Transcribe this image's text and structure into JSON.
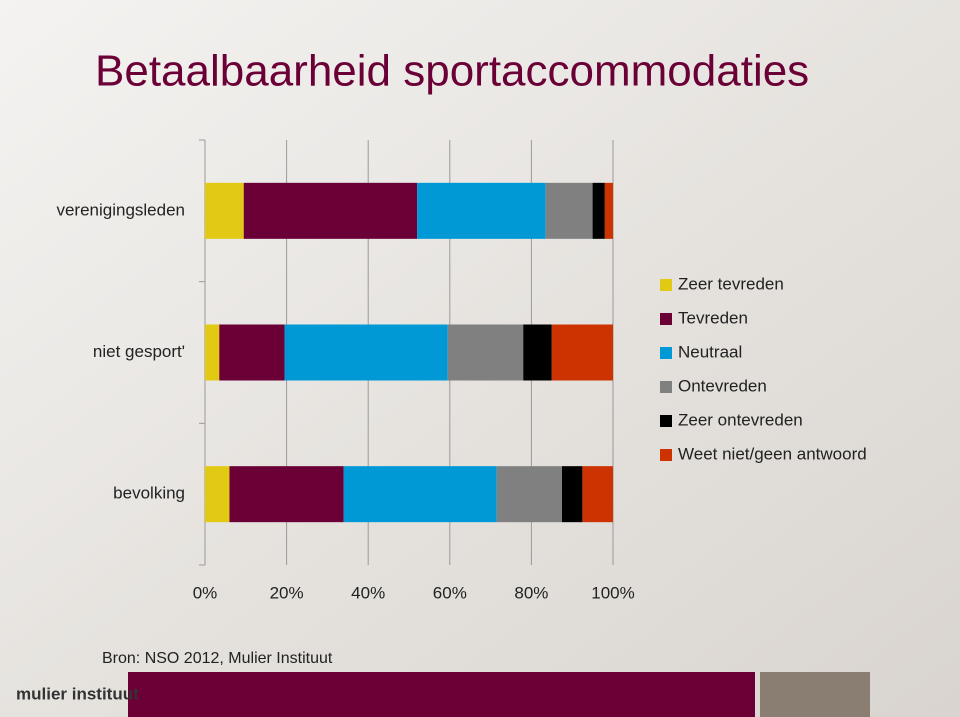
{
  "chart_data": {
    "type": "stacked-bar-horizontal",
    "title": "Betaalbaarheid sportaccommodaties",
    "source": "Bron: NSO 2012, Mulier Instituut",
    "logo": "mulier instituut",
    "categories": [
      "verenigingsleden",
      "niet gesport'",
      "bevolking"
    ],
    "series": [
      {
        "name": "Zeer tevreden",
        "color": "#e2c914",
        "values": [
          9.5,
          3.5,
          6
        ]
      },
      {
        "name": "Tevreden",
        "color": "#6b0037",
        "values": [
          42.5,
          16,
          28
        ]
      },
      {
        "name": "Neutraal",
        "color": "#0099d5",
        "values": [
          31.5,
          40,
          37.5
        ]
      },
      {
        "name": "Ontevreden",
        "color": "#808080",
        "values": [
          11.5,
          18.5,
          16
        ]
      },
      {
        "name": "Zeer ontevreden",
        "color": "#000000",
        "values": [
          3,
          7,
          5
        ]
      },
      {
        "name": "Weet niet/geen antwoord",
        "color": "#cc3300",
        "values": [
          2,
          15,
          7.5
        ]
      }
    ],
    "xlim": [
      0,
      100
    ],
    "xticks": [
      {
        "value": 0,
        "label": "0%"
      },
      {
        "value": 20,
        "label": "20%"
      },
      {
        "value": 40,
        "label": "40%"
      },
      {
        "value": 60,
        "label": "60%"
      },
      {
        "value": 80,
        "label": "80%"
      },
      {
        "value": 100,
        "label": "100%"
      }
    ],
    "grid": true,
    "legend": "right"
  }
}
